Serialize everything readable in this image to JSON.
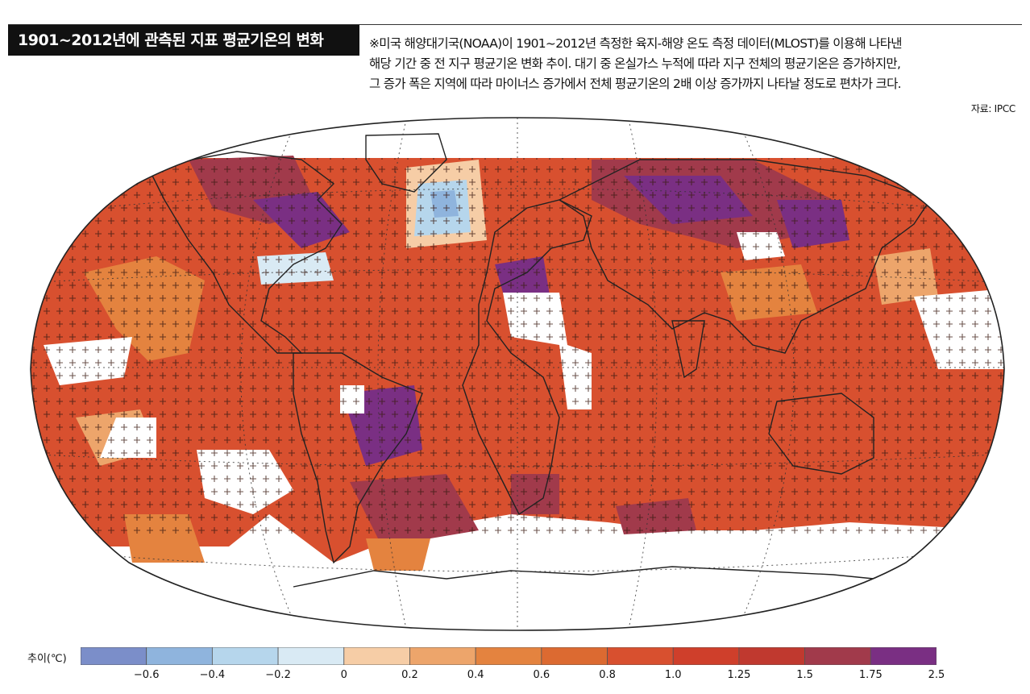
{
  "header": {
    "title": "1901~2012년에 관측된 지표 평균기온의 변화",
    "caption_lines": [
      "※미국 해양대기국(NOAA)이 1901~2012년 측정한 육지-해양 온도 측정 데이터(MLOST)를 이용해 나타낸",
      "해당 기간 중 전 지구 평균기온 변화 추이. 대기 중 온실가스 누적에 따라 지구 전체의 평균기온은 증가하지만,",
      "그 증가 폭은 지역에 따라 마이너스 증가에서 전체 평균기온의 2배 이상 증가까지 나타날 정도로 편차가 크다."
    ],
    "source": "자료: IPCC"
  },
  "map": {
    "projection": "Robinson",
    "grid": "dotted",
    "significance_markers": "+",
    "ocean_land_fill_default": "#d8502f",
    "colors": {
      "no_data": "#ffffff",
      "coastline": "#222222"
    }
  },
  "legend": {
    "label": "추이(℃)",
    "colors": [
      "#7b8ec9",
      "#8fb4dd",
      "#b6d6ec",
      "#d9eaf4",
      "#f6cda6",
      "#eda56b",
      "#e4833f",
      "#dc6a31",
      "#d8502f",
      "#cf3f2b",
      "#c0392f",
      "#a13a4b",
      "#7a2f83"
    ],
    "ticks": [
      "−0.6",
      "−0.4",
      "−0.2",
      "0",
      "0.2",
      "0.4",
      "0.6",
      "0.8",
      "1.0",
      "1.25",
      "1.5",
      "1.75",
      "2.5"
    ]
  }
}
